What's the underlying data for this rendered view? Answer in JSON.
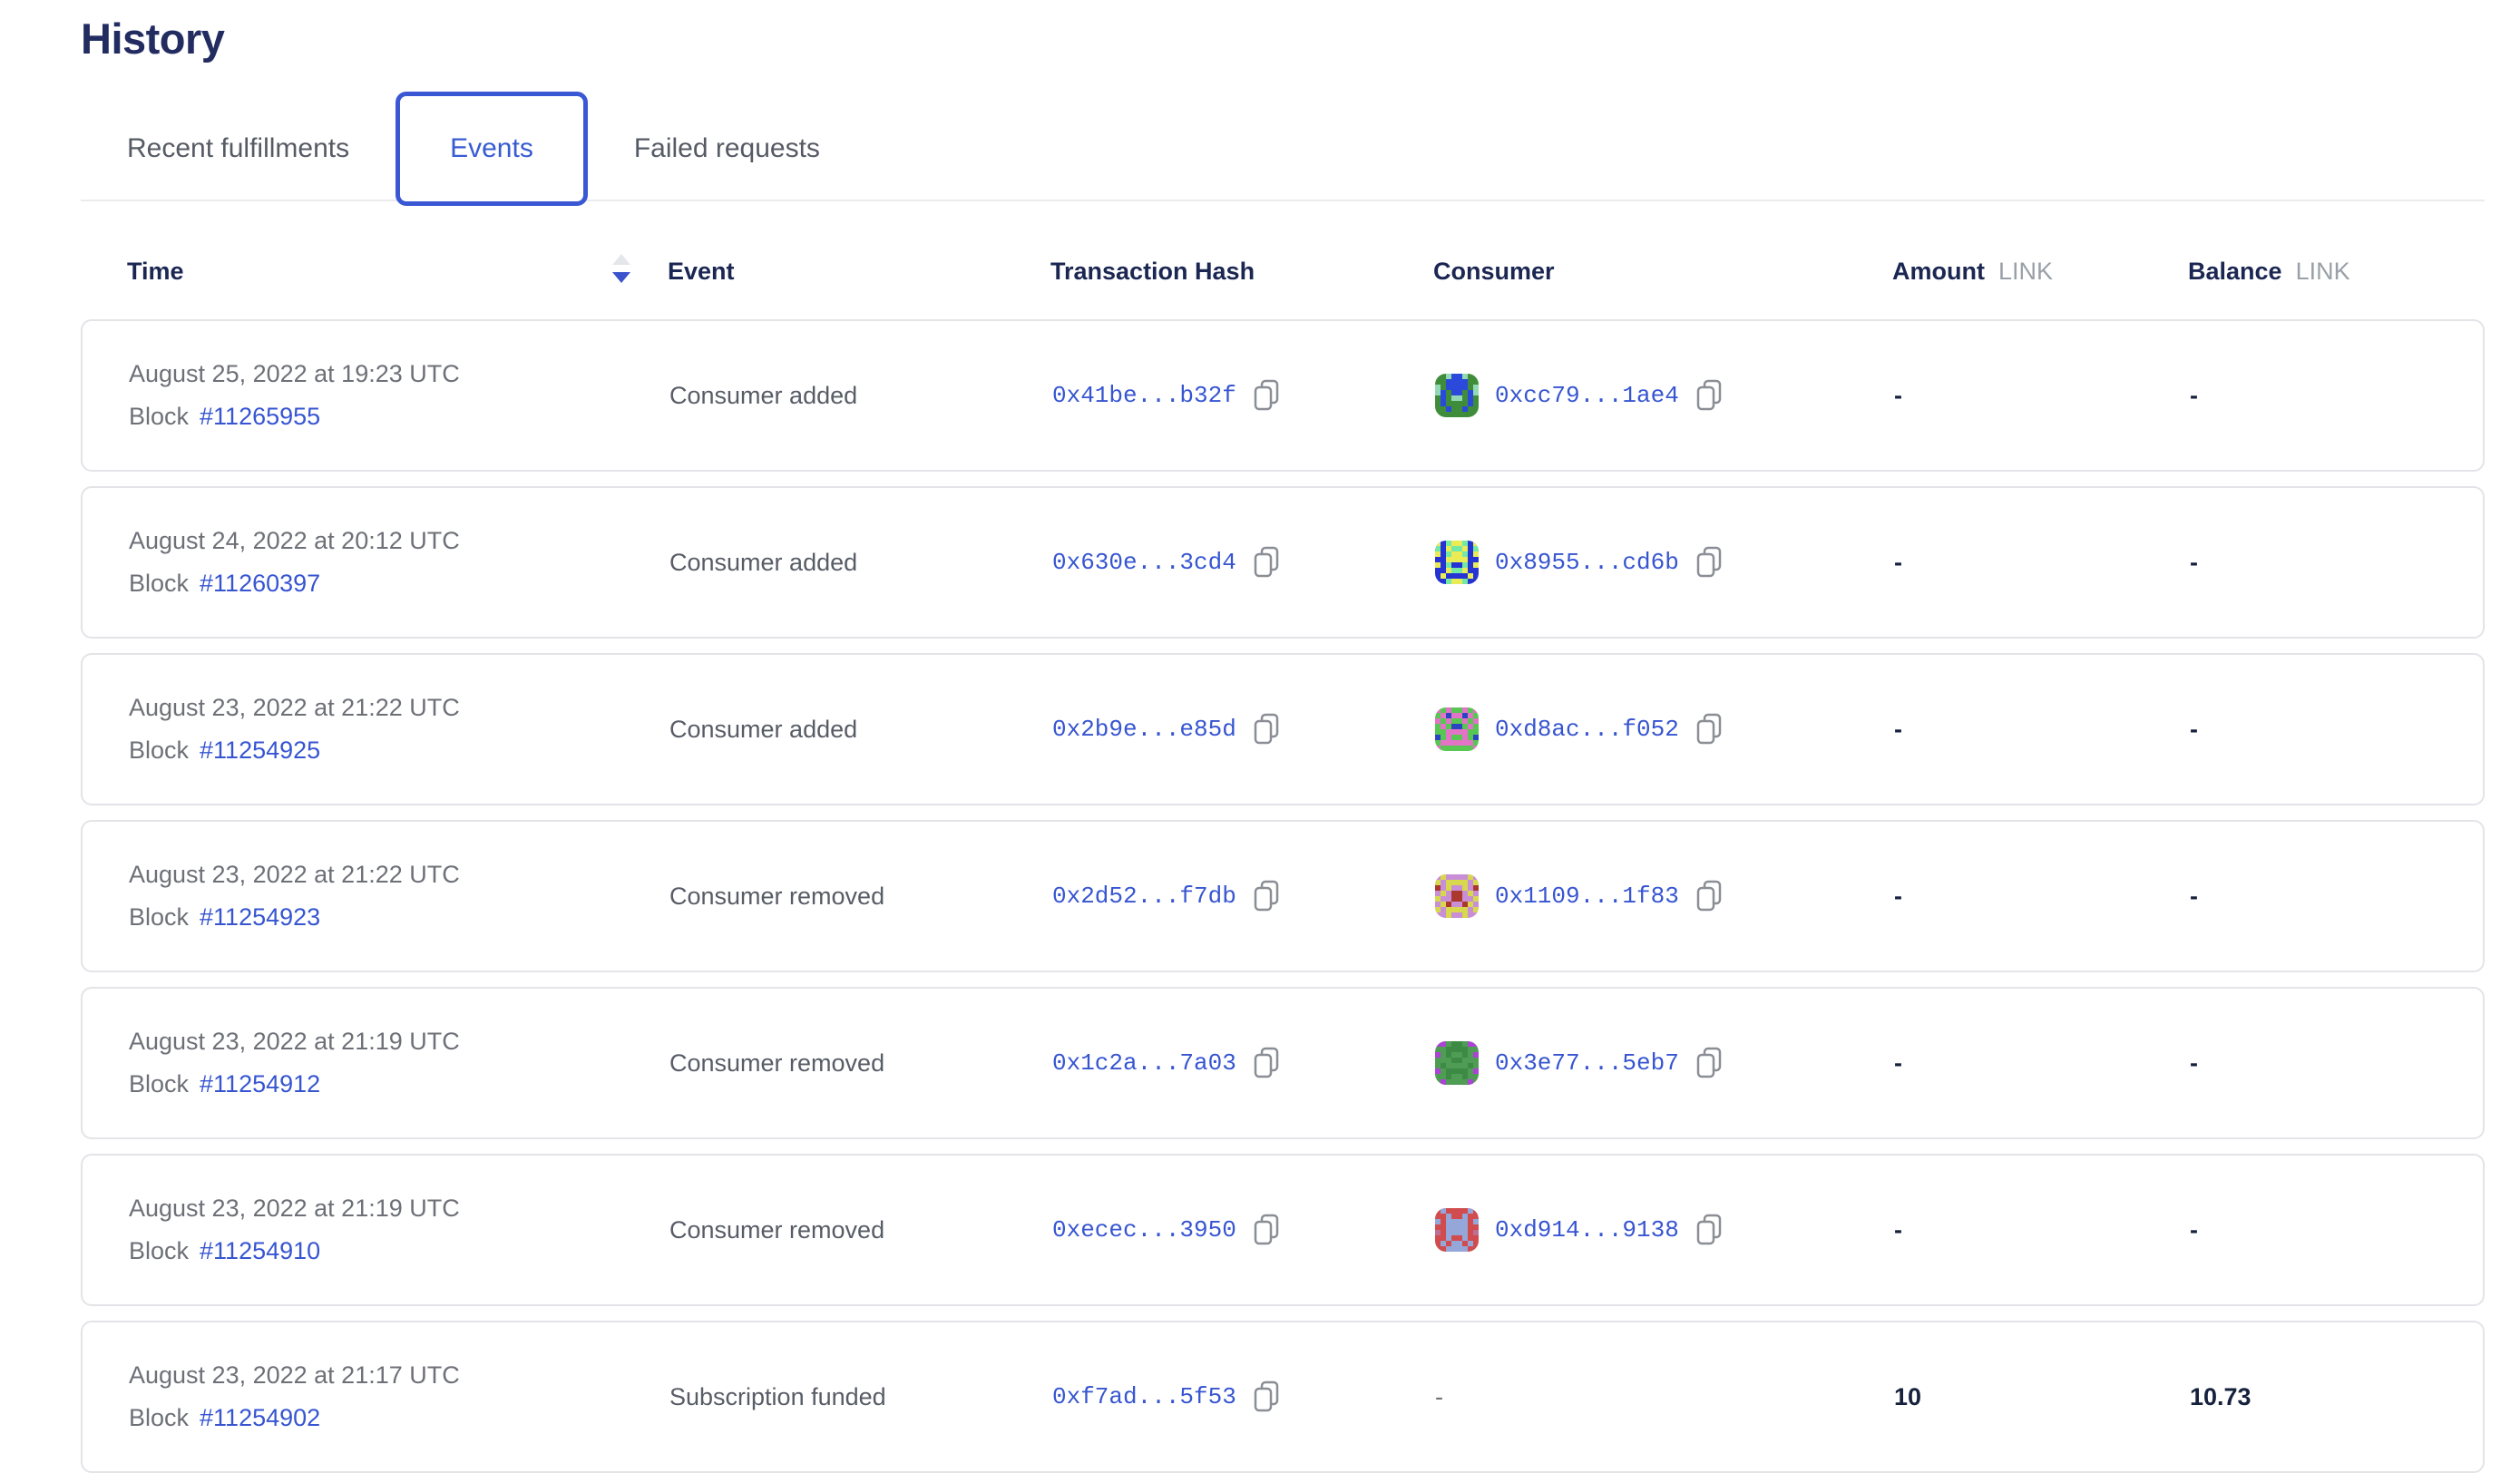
{
  "page": {
    "title": "History"
  },
  "tabs": [
    {
      "label": "Recent fulfillments",
      "active": false
    },
    {
      "label": "Events",
      "active": true
    },
    {
      "label": "Failed requests",
      "active": false
    }
  ],
  "table": {
    "columns": {
      "time": "Time",
      "event": "Event",
      "transaction_hash": "Transaction Hash",
      "consumer": "Consumer",
      "amount": "Amount",
      "amount_unit": "LINK",
      "balance": "Balance",
      "balance_unit": "LINK"
    },
    "sort": {
      "column": "Time",
      "direction": "descending"
    },
    "rows": [
      {
        "date": "August 25, 2022 at 19:23 UTC",
        "block_label": "Block",
        "block_number": "#11265955",
        "event": "Consumer added",
        "transaction_hash": "0x41be...b32f",
        "consumer_address": "0xcc79...1ae4",
        "amount": "-",
        "balance": "-",
        "avatar": {
          "bg": "#3f8d3b",
          "c1": "#2b4adb",
          "c2": "#93d9b6",
          "grid": [
            "00211200",
            "00111100",
            "20111102",
            "21011012",
            "01022010",
            "01000010",
            "00100100",
            "00000000"
          ]
        }
      },
      {
        "date": "August 24, 2022 at 20:12 UTC",
        "block_label": "Block",
        "block_number": "#11260397",
        "event": "Consumer added",
        "transaction_hash": "0x630e...3cd4",
        "consumer_address": "0x8955...cd6b",
        "amount": "-",
        "balance": "-",
        "avatar": {
          "bg": "#2533d4",
          "c1": "#e9ec55",
          "c2": "#74e9a6",
          "grid": [
            "10211201",
            "20122102",
            "10211201",
            "00111100",
            "10200201",
            "00122100",
            "01000010",
            "00211200"
          ]
        }
      },
      {
        "date": "August 23, 2022 at 21:22 UTC",
        "block_label": "Block",
        "block_number": "#11254925",
        "event": "Consumer added",
        "transaction_hash": "0x2b9e...e85d",
        "consumer_address": "0xd8ac...f052",
        "amount": "-",
        "balance": "-",
        "avatar": {
          "bg": "#58c653",
          "c1": "#e273c7",
          "c2": "#2b44c0",
          "grid": [
            "10100101",
            "01211210",
            "10100101",
            "01022010",
            "00111100",
            "20100102",
            "01111110",
            "10000001"
          ]
        }
      },
      {
        "date": "August 23, 2022 at 21:22 UTC",
        "block_label": "Block",
        "block_number": "#11254923",
        "event": "Consumer removed",
        "transaction_hash": "0x2d52...f7db",
        "consumer_address": "0x1109...1f83",
        "amount": "-",
        "balance": "-",
        "avatar": {
          "bg": "#c98fd6",
          "c1": "#d8d84e",
          "c2": "#ab382d",
          "grid": [
            "01000010",
            "10111101",
            "20100102",
            "01022010",
            "10022001",
            "01200210",
            "10111101",
            "00100100"
          ]
        }
      },
      {
        "date": "August 23, 2022 at 21:19 UTC",
        "block_label": "Block",
        "block_number": "#11254912",
        "event": "Consumer removed",
        "transaction_hash": "0x1c2a...7a03",
        "consumer_address": "0x3e77...5eb7",
        "amount": "-",
        "balance": "-",
        "avatar": {
          "bg": "#4f9c55",
          "c1": "#ad42d6",
          "c2": "#3c8a44",
          "grid": [
            "11022011",
            "00222200",
            "10200201",
            "00022000",
            "02000020",
            "10222201",
            "00200200",
            "01000010"
          ]
        }
      },
      {
        "date": "August 23, 2022 at 21:19 UTC",
        "block_label": "Block",
        "block_number": "#11254910",
        "event": "Consumer removed",
        "transaction_hash": "0xecec...3950",
        "consumer_address": "0xd914...9138",
        "amount": "-",
        "balance": "-",
        "avatar": {
          "bg": "#d04c4e",
          "c1": "#95a6d8",
          "c2": "#bd7096",
          "grid": [
            "01000010",
            "00100100",
            "10111101",
            "00111100",
            "20111102",
            "00100100",
            "01011010",
            "00111100"
          ]
        }
      },
      {
        "date": "August 23, 2022 at 21:17 UTC",
        "block_label": "Block",
        "block_number": "#11254902",
        "event": "Subscription funded",
        "transaction_hash": "0xf7ad...5f53",
        "consumer_address": "-",
        "amount": "10",
        "balance": "10.73",
        "avatar": null
      }
    ]
  },
  "colors": {
    "brand_blue": "#375bd2",
    "heading_navy": "#222c60",
    "header_navy": "#1b2752",
    "muted_gray": "#6d7077",
    "unit_gray": "#9aa0a8",
    "card_border": "#e4e4e8",
    "value_navy": "#16213d",
    "sort_inactive": "#e4e6ea",
    "sort_active": "#3b53cc"
  }
}
